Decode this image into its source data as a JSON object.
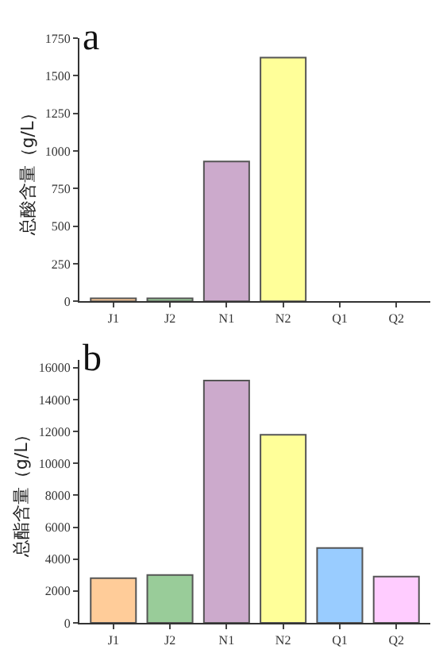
{
  "chart_data": [
    {
      "type": "bar",
      "title": "a",
      "ylabel": "总酸含量（g/L）",
      "categories": [
        "J1",
        "J2",
        "N1",
        "N2",
        "Q1",
        "Q2"
      ],
      "values": [
        20,
        20,
        930,
        1620,
        null,
        null
      ],
      "colors": [
        "#ffcc99",
        "#99cc99",
        "#ccaacc",
        "#ffff99",
        "#99ccff",
        "#ffccff"
      ],
      "ylim": [
        0,
        1750
      ],
      "yticks": [
        0,
        250,
        500,
        750,
        1000,
        1250,
        1500,
        1750
      ]
    },
    {
      "type": "bar",
      "title": "b",
      "ylabel": "总酯含量（g/L）",
      "categories": [
        "J1",
        "J2",
        "N1",
        "N2",
        "Q1",
        "Q2"
      ],
      "values": [
        2800,
        3000,
        15200,
        11800,
        4700,
        2900
      ],
      "colors": [
        "#ffcc99",
        "#99cc99",
        "#ccaacc",
        "#ffff99",
        "#99ccff",
        "#ffccff"
      ],
      "ylim": [
        0,
        16500
      ],
      "yticks": [
        0,
        2000,
        4000,
        6000,
        8000,
        10000,
        12000,
        14000,
        16000
      ]
    }
  ]
}
